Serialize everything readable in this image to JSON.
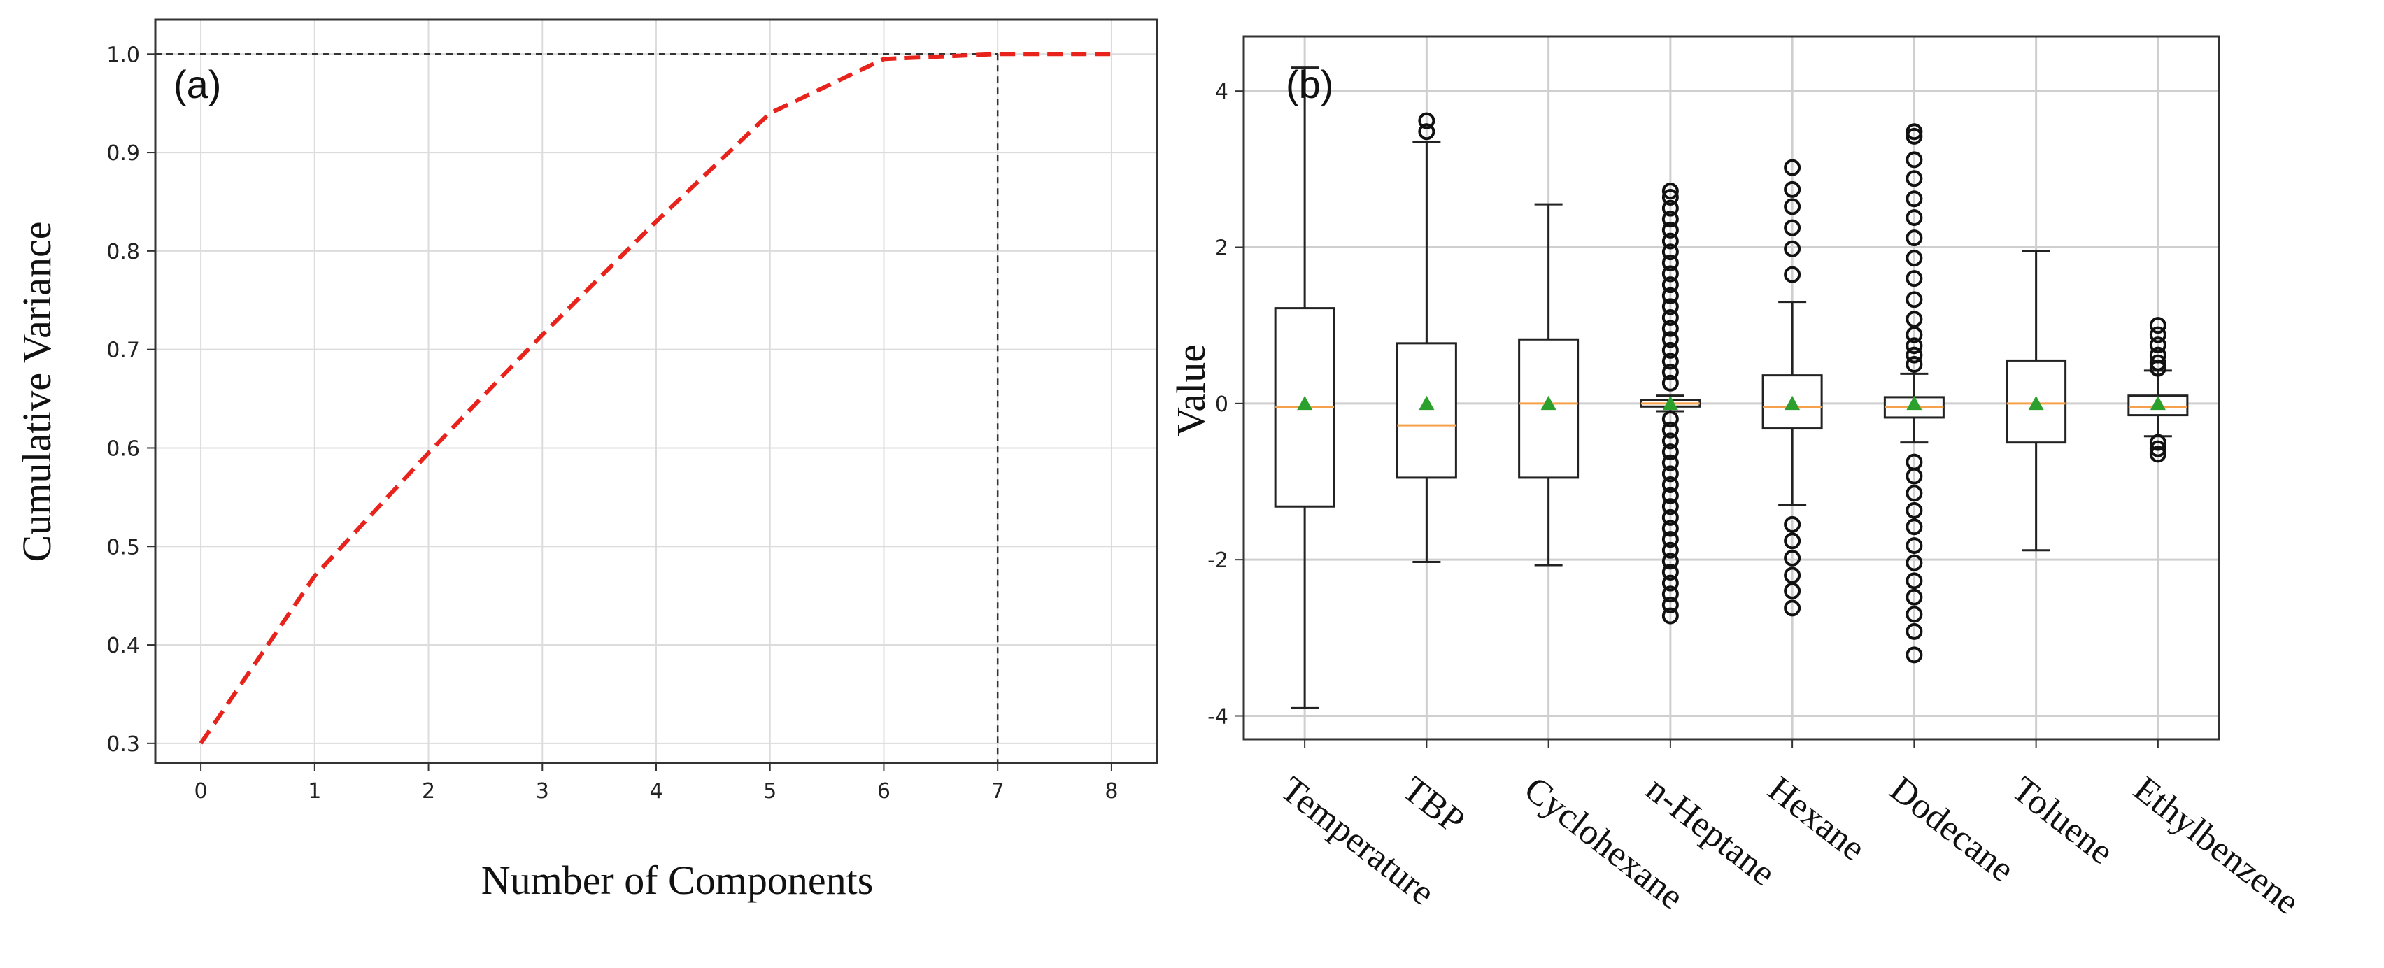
{
  "chart_data": [
    {
      "type": "line",
      "panel_label": "(a)",
      "title": "",
      "xlabel": "Number of Components",
      "ylabel": "Cumulative Variance",
      "x": [
        0,
        1,
        2,
        3,
        4,
        5,
        6,
        7,
        8
      ],
      "series": [
        {
          "name": "Cumulative Variance",
          "values": [
            0.3,
            0.47,
            0.595,
            0.715,
            0.83,
            0.94,
            0.995,
            1.0,
            1.0
          ],
          "color": "#e8231c",
          "style": "dashed"
        }
      ],
      "xticks": [
        "0",
        "1",
        "2",
        "3",
        "4",
        "5",
        "6",
        "7",
        "8"
      ],
      "yticks": [
        "0.3",
        "0.4",
        "0.5",
        "0.6",
        "0.7",
        "0.8",
        "0.9",
        "1.0"
      ],
      "xlim": [
        -0.4,
        8.4
      ],
      "ylim": [
        0.28,
        1.035
      ],
      "reference_lines": {
        "hline_y": 1.0,
        "vline_x": 7
      },
      "grid": true
    },
    {
      "type": "box",
      "panel_label": "(b)",
      "title": "",
      "xlabel": "",
      "ylabel": "Value",
      "categories": [
        "Temperature",
        "TBP",
        "Cyclohexane",
        "n-Heptane",
        "Hexane",
        "Dodecane",
        "Toluene",
        "Ethylbenzene"
      ],
      "boxes": [
        {
          "q1": -1.32,
          "median": -0.05,
          "q3": 1.22,
          "whisker_low": -3.9,
          "whisker_high": 4.3,
          "mean": 0.0,
          "outliers": []
        },
        {
          "q1": -0.95,
          "median": -0.28,
          "q3": 0.77,
          "whisker_low": -2.03,
          "whisker_high": 3.35,
          "mean": 0.0,
          "outliers": [
            3.48,
            3.62
          ]
        },
        {
          "q1": -0.95,
          "median": 0.0,
          "q3": 0.82,
          "whisker_low": -2.07,
          "whisker_high": 2.55,
          "mean": 0.0,
          "outliers": []
        },
        {
          "q1": -0.04,
          "median": 0.0,
          "q3": 0.04,
          "whisker_low": -0.1,
          "whisker_high": 0.1,
          "mean": 0.0,
          "outliers": [
            -2.72,
            -2.58,
            -2.44,
            -2.3,
            -2.16,
            -2.02,
            -1.88,
            -1.74,
            -1.6,
            -1.46,
            -1.32,
            -1.18,
            -1.04,
            -0.9,
            -0.76,
            -0.62,
            -0.48,
            -0.34,
            -0.2,
            0.26,
            0.4,
            0.54,
            0.68,
            0.82,
            0.96,
            1.1,
            1.24,
            1.38,
            1.52,
            1.66,
            1.8,
            1.94,
            2.08,
            2.22,
            2.36,
            2.5,
            2.64,
            2.72
          ]
        },
        {
          "q1": -0.32,
          "median": -0.05,
          "q3": 0.36,
          "whisker_low": -1.3,
          "whisker_high": 1.3,
          "mean": 0.0,
          "outliers": [
            -2.62,
            -2.4,
            -2.2,
            -1.98,
            -1.76,
            -1.55,
            1.65,
            1.98,
            2.25,
            2.52,
            2.74,
            3.02
          ]
        },
        {
          "q1": -0.18,
          "median": -0.05,
          "q3": 0.08,
          "whisker_low": -0.5,
          "whisker_high": 0.38,
          "mean": 0.0,
          "outliers": [
            -3.22,
            -2.92,
            -2.7,
            -2.48,
            -2.27,
            -2.04,
            -1.82,
            -1.58,
            -1.37,
            -1.15,
            -0.93,
            -0.75,
            0.5,
            0.62,
            0.74,
            0.88,
            1.08,
            1.33,
            1.6,
            1.86,
            2.12,
            2.38,
            2.62,
            2.88,
            3.12,
            3.42,
            3.48
          ]
        },
        {
          "q1": -0.5,
          "median": 0.0,
          "q3": 0.55,
          "whisker_low": -1.88,
          "whisker_high": 1.95,
          "mean": 0.0,
          "outliers": []
        },
        {
          "q1": -0.15,
          "median": -0.05,
          "q3": 0.1,
          "whisker_low": -0.42,
          "whisker_high": 0.42,
          "mean": 0.0,
          "outliers": [
            -0.65,
            -0.58,
            -0.5,
            0.45,
            0.52,
            0.62,
            0.75,
            0.88,
            1.0
          ]
        }
      ],
      "yticks": [
        "-4",
        "-2",
        "0",
        "2",
        "4"
      ],
      "ylim": [
        -4.3,
        4.7
      ],
      "median_color": "#f5a04a",
      "mean_color": "#2ca02c",
      "grid": true
    }
  ]
}
